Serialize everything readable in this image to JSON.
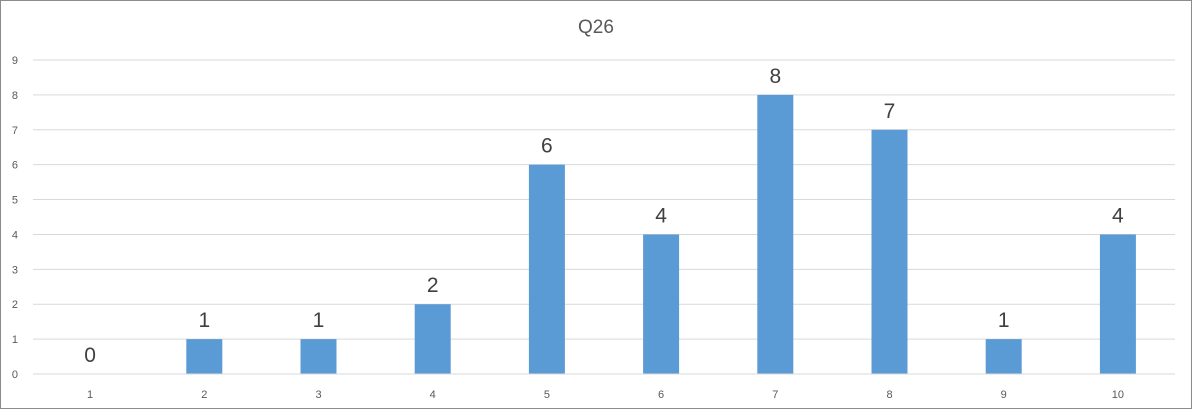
{
  "chart_data": {
    "type": "bar",
    "title": "Q26",
    "xlabel": "",
    "ylabel": "",
    "categories": [
      "1",
      "2",
      "3",
      "4",
      "5",
      "6",
      "7",
      "8",
      "9",
      "10"
    ],
    "values": [
      0,
      1,
      1,
      2,
      6,
      4,
      8,
      7,
      1,
      4
    ],
    "ylim": [
      0,
      9
    ],
    "yticks": [
      0,
      1,
      2,
      3,
      4,
      5,
      6,
      7,
      8,
      9
    ],
    "grid": true,
    "legend": "none",
    "data_labels": true,
    "bar_color": "#5b9bd5"
  }
}
